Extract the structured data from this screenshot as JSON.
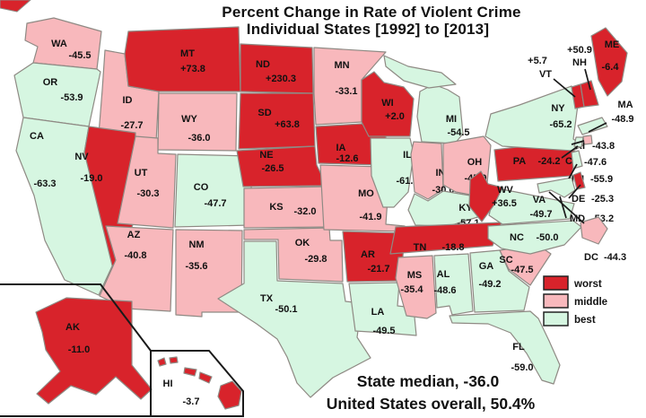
{
  "title": {
    "line1": "Percent Change in Rate of Violent Crime",
    "line2": "Individual States [1992] to [2013]"
  },
  "annotations": {
    "state_median": "State median, -36.0",
    "us_overall": "United States overall, 50.4%"
  },
  "legend": {
    "items": [
      {
        "label": "worst",
        "class": "worst"
      },
      {
        "label": "middle",
        "class": "middle"
      },
      {
        "label": "best",
        "class": "best"
      }
    ]
  },
  "colors": {
    "worst": "#d8232b",
    "middle": "#f8b8bc",
    "best": "#d6f6e1",
    "border": "#8f8a84",
    "line": "#1a1a1a",
    "ink": "#111111"
  },
  "chart_data": {
    "type": "heatmap",
    "subtype": "us-state-choropleth",
    "title": "Percent Change in Rate of Violent Crime",
    "subtitle": "Individual States [1992] to [2013]",
    "legend": [
      "worst",
      "middle",
      "best"
    ],
    "legend_position": "right-middle",
    "state_median": -36.0,
    "us_overall": 50.4,
    "states": [
      {
        "state": "WA",
        "pct": -45.5,
        "class": "middle"
      },
      {
        "state": "OR",
        "pct": -53.9,
        "class": "best"
      },
      {
        "state": "CA",
        "pct": -63.3,
        "class": "best"
      },
      {
        "state": "ID",
        "pct": -27.7,
        "class": "middle"
      },
      {
        "state": "MT",
        "pct": 73.8,
        "class": "worst"
      },
      {
        "state": "WY",
        "pct": -36.0,
        "class": "middle"
      },
      {
        "state": "NV",
        "pct": -19.0,
        "class": "worst"
      },
      {
        "state": "UT",
        "pct": -30.3,
        "class": "middle"
      },
      {
        "state": "CO",
        "pct": -47.7,
        "class": "best"
      },
      {
        "state": "AZ",
        "pct": -40.8,
        "class": "middle"
      },
      {
        "state": "NM",
        "pct": -35.6,
        "class": "middle"
      },
      {
        "state": "ND",
        "pct": 230.3,
        "class": "worst"
      },
      {
        "state": "SD",
        "pct": 63.8,
        "class": "worst"
      },
      {
        "state": "NE",
        "pct": -26.5,
        "class": "worst"
      },
      {
        "state": "KS",
        "pct": -32.0,
        "class": "middle"
      },
      {
        "state": "OK",
        "pct": -29.8,
        "class": "middle"
      },
      {
        "state": "TX",
        "pct": -50.1,
        "class": "best"
      },
      {
        "state": "MN",
        "pct": -33.1,
        "class": "middle"
      },
      {
        "state": "IA",
        "pct": -12.6,
        "class": "worst"
      },
      {
        "state": "MO",
        "pct": -41.9,
        "class": "middle"
      },
      {
        "state": "AR",
        "pct": -21.7,
        "class": "worst"
      },
      {
        "state": "LA",
        "pct": -49.5,
        "class": "best"
      },
      {
        "state": "WI",
        "pct": 2.0,
        "class": "worst"
      },
      {
        "state": "IL",
        "pct": -61.7,
        "class": "best"
      },
      {
        "state": "MI",
        "pct": -54.5,
        "class": "best"
      },
      {
        "state": "IN",
        "pct": -30.0,
        "class": "middle"
      },
      {
        "state": "OH",
        "pct": -45.9,
        "class": "middle"
      },
      {
        "state": "KY",
        "pct": -57.1,
        "class": "best"
      },
      {
        "state": "TN",
        "pct": -18.8,
        "class": "worst"
      },
      {
        "state": "MS",
        "pct": -35.4,
        "class": "middle"
      },
      {
        "state": "AL",
        "pct": -48.6,
        "class": "best"
      },
      {
        "state": "GA",
        "pct": -49.2,
        "class": "best"
      },
      {
        "state": "FL",
        "pct": -59.0,
        "class": "best"
      },
      {
        "state": "SC",
        "pct": -47.5,
        "class": "middle"
      },
      {
        "state": "NC",
        "pct": -50.0,
        "class": "best"
      },
      {
        "state": "VA",
        "pct": -49.7,
        "class": "best"
      },
      {
        "state": "WV",
        "pct": 36.5,
        "class": "worst"
      },
      {
        "state": "PA",
        "pct": -24.2,
        "class": "worst"
      },
      {
        "state": "NY",
        "pct": -65.2,
        "class": "best"
      },
      {
        "state": "VT",
        "pct": 5.7,
        "class": "worst"
      },
      {
        "state": "NH",
        "pct": 50.9,
        "class": "worst"
      },
      {
        "state": "ME",
        "pct": -6.4,
        "class": "worst"
      },
      {
        "state": "MA",
        "pct": -48.9,
        "class": "best"
      },
      {
        "state": "RI",
        "pct": -43.8,
        "class": "middle"
      },
      {
        "state": "CT",
        "pct": -47.6,
        "class": "best"
      },
      {
        "state": "NJ",
        "pct": -55.9,
        "class": "best"
      },
      {
        "state": "DE",
        "pct": -25.3,
        "class": "worst"
      },
      {
        "state": "MD",
        "pct": -53.2,
        "class": "best"
      },
      {
        "state": "DC",
        "pct": -44.3,
        "class": "middle"
      },
      {
        "state": "AK",
        "pct": -11.0,
        "class": "worst"
      },
      {
        "state": "HI",
        "pct": -3.7,
        "class": "worst"
      }
    ]
  }
}
